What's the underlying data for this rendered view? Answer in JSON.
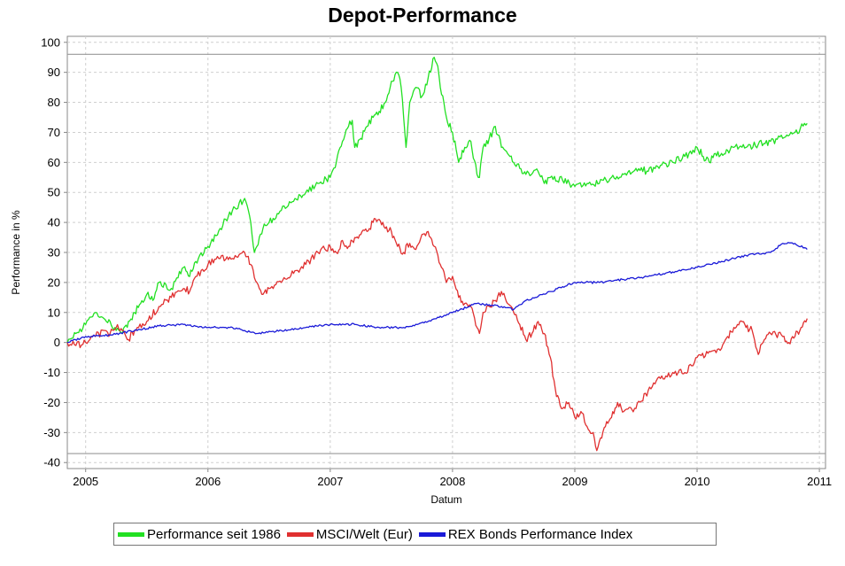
{
  "chart_data": {
    "type": "line",
    "title": "Depot-Performance",
    "xlabel": "Datum",
    "ylabel": "Performance in %",
    "xlim": [
      2004.85,
      2011.05
    ],
    "ylim": [
      -42,
      102
    ],
    "x_ticks": [
      2005,
      2006,
      2007,
      2008,
      2009,
      2010,
      2011
    ],
    "x_tick_labels": [
      "2005",
      "2006",
      "2007",
      "2008",
      "2009",
      "2010",
      "2011"
    ],
    "y_ticks": [
      100,
      90,
      80,
      70,
      60,
      50,
      40,
      30,
      20,
      10,
      0,
      -10,
      -20,
      -30,
      -40
    ],
    "y_tick_labels": [
      "100",
      "90",
      "80",
      "70",
      "60",
      "50",
      "40",
      "30",
      "20",
      "10",
      "0",
      "-10",
      "-20",
      "-30",
      "-40"
    ],
    "grid": true,
    "reference_lines": [
      96,
      -37
    ],
    "legend_position": "bottom",
    "series": [
      {
        "name": "Performance seit 1986",
        "color": "#22e022",
        "x": [
          2004.85,
          2004.92,
          2005.0,
          2005.08,
          2005.15,
          2005.2,
          2005.25,
          2005.3,
          2005.35,
          2005.4,
          2005.45,
          2005.5,
          2005.55,
          2005.6,
          2005.7,
          2005.8,
          2005.85,
          2005.9,
          2006.0,
          2006.1,
          2006.2,
          2006.3,
          2006.35,
          2006.38,
          2006.4,
          2006.45,
          2006.5,
          2006.6,
          2006.7,
          2006.8,
          2006.9,
          2007.0,
          2007.05,
          2007.1,
          2007.15,
          2007.18,
          2007.2,
          2007.25,
          2007.3,
          2007.35,
          2007.4,
          2007.45,
          2007.5,
          2007.55,
          2007.58,
          2007.6,
          2007.62,
          2007.65,
          2007.7,
          2007.75,
          2007.8,
          2007.85,
          2007.88,
          2007.9,
          2007.95,
          2008.0,
          2008.05,
          2008.1,
          2008.15,
          2008.2,
          2008.22,
          2008.25,
          2008.3,
          2008.35,
          2008.4,
          2008.45,
          2008.5,
          2008.55,
          2008.6,
          2008.7,
          2008.75,
          2008.8,
          2008.9,
          2009.0,
          2009.1,
          2009.2,
          2009.3,
          2009.4,
          2009.5,
          2009.6,
          2009.7,
          2009.8,
          2009.9,
          2010.0,
          2010.05,
          2010.1,
          2010.15,
          2010.2,
          2010.25,
          2010.3,
          2010.4,
          2010.5,
          2010.6,
          2010.7,
          2010.8,
          2010.9
        ],
        "values": [
          0,
          3,
          6,
          10,
          8,
          7,
          4,
          3,
          7,
          10,
          13,
          16,
          14,
          20,
          18,
          25,
          22,
          27,
          32,
          38,
          44,
          48,
          40,
          30,
          32,
          38,
          40,
          44,
          47,
          50,
          53,
          55,
          60,
          67,
          72,
          74,
          65,
          68,
          72,
          75,
          77,
          80,
          87,
          90,
          85,
          75,
          65,
          80,
          85,
          82,
          88,
          95,
          92,
          85,
          75,
          70,
          60,
          65,
          67,
          56,
          55,
          65,
          68,
          72,
          65,
          63,
          60,
          58,
          56,
          57,
          53,
          55,
          54,
          52,
          53,
          53,
          55,
          56,
          58,
          57,
          59,
          60,
          62,
          65,
          62,
          60,
          63,
          63,
          64,
          65,
          65,
          66,
          67,
          68,
          70,
          73
        ]
      },
      {
        "name": "MSCI/Welt (Eur)",
        "color": "#e03030",
        "x": [
          2004.85,
          2004.92,
          2005.0,
          2005.08,
          2005.15,
          2005.2,
          2005.25,
          2005.3,
          2005.35,
          2005.4,
          2005.5,
          2005.6,
          2005.7,
          2005.8,
          2005.85,
          2005.9,
          2006.0,
          2006.1,
          2006.2,
          2006.3,
          2006.35,
          2006.4,
          2006.45,
          2006.5,
          2006.6,
          2006.7,
          2006.8,
          2006.9,
          2007.0,
          2007.05,
          2007.1,
          2007.15,
          2007.2,
          2007.25,
          2007.3,
          2007.35,
          2007.4,
          2007.45,
          2007.5,
          2007.55,
          2007.6,
          2007.65,
          2007.7,
          2007.75,
          2007.8,
          2007.85,
          2007.9,
          2007.95,
          2008.0,
          2008.05,
          2008.1,
          2008.15,
          2008.2,
          2008.22,
          2008.25,
          2008.3,
          2008.35,
          2008.4,
          2008.45,
          2008.5,
          2008.55,
          2008.6,
          2008.65,
          2008.7,
          2008.75,
          2008.8,
          2008.85,
          2008.9,
          2008.95,
          2009.0,
          2009.05,
          2009.1,
          2009.15,
          2009.18,
          2009.2,
          2009.25,
          2009.3,
          2009.35,
          2009.4,
          2009.5,
          2009.6,
          2009.7,
          2009.8,
          2009.9,
          2010.0,
          2010.1,
          2010.2,
          2010.25,
          2010.3,
          2010.35,
          2010.4,
          2010.45,
          2010.5,
          2010.55,
          2010.6,
          2010.7,
          2010.75,
          2010.8,
          2010.85,
          2010.9
        ],
        "values": [
          0,
          -1,
          0,
          2,
          4,
          3,
          5,
          4,
          1,
          4,
          7,
          12,
          15,
          18,
          17,
          22,
          26,
          28,
          28,
          30,
          26,
          20,
          16,
          18,
          20,
          23,
          26,
          30,
          32,
          30,
          34,
          32,
          35,
          36,
          37,
          40,
          41,
          38,
          37,
          32,
          30,
          33,
          31,
          36,
          37,
          32,
          26,
          20,
          22,
          15,
          13,
          12,
          5,
          3,
          10,
          12,
          14,
          17,
          13,
          10,
          6,
          1,
          3,
          7,
          3,
          -5,
          -18,
          -22,
          -20,
          -25,
          -23,
          -28,
          -30,
          -36,
          -33,
          -28,
          -25,
          -20,
          -23,
          -22,
          -16,
          -12,
          -10,
          -10,
          -5,
          -3,
          -2,
          2,
          5,
          7,
          5,
          4,
          -4,
          1,
          3,
          2,
          0,
          2,
          5,
          8
        ]
      },
      {
        "name": "REX Bonds Performance Index",
        "color": "#1a1ad8",
        "x": [
          2004.85,
          2005.0,
          2005.2,
          2005.4,
          2005.6,
          2005.8,
          2006.0,
          2006.2,
          2006.4,
          2006.6,
          2006.8,
          2007.0,
          2007.2,
          2007.4,
          2007.6,
          2007.8,
          2008.0,
          2008.2,
          2008.4,
          2008.5,
          2008.6,
          2008.8,
          2009.0,
          2009.2,
          2009.4,
          2009.6,
          2009.8,
          2010.0,
          2010.2,
          2010.4,
          2010.6,
          2010.7,
          2010.8,
          2010.9
        ],
        "values": [
          0,
          2,
          2.5,
          4,
          5.5,
          6,
          5,
          5,
          3,
          4,
          5,
          6,
          6,
          5,
          5,
          7,
          10,
          13,
          12,
          11,
          14,
          17,
          20,
          20,
          21,
          22,
          23.5,
          25,
          27,
          29,
          30,
          33,
          33,
          31
        ]
      }
    ]
  }
}
